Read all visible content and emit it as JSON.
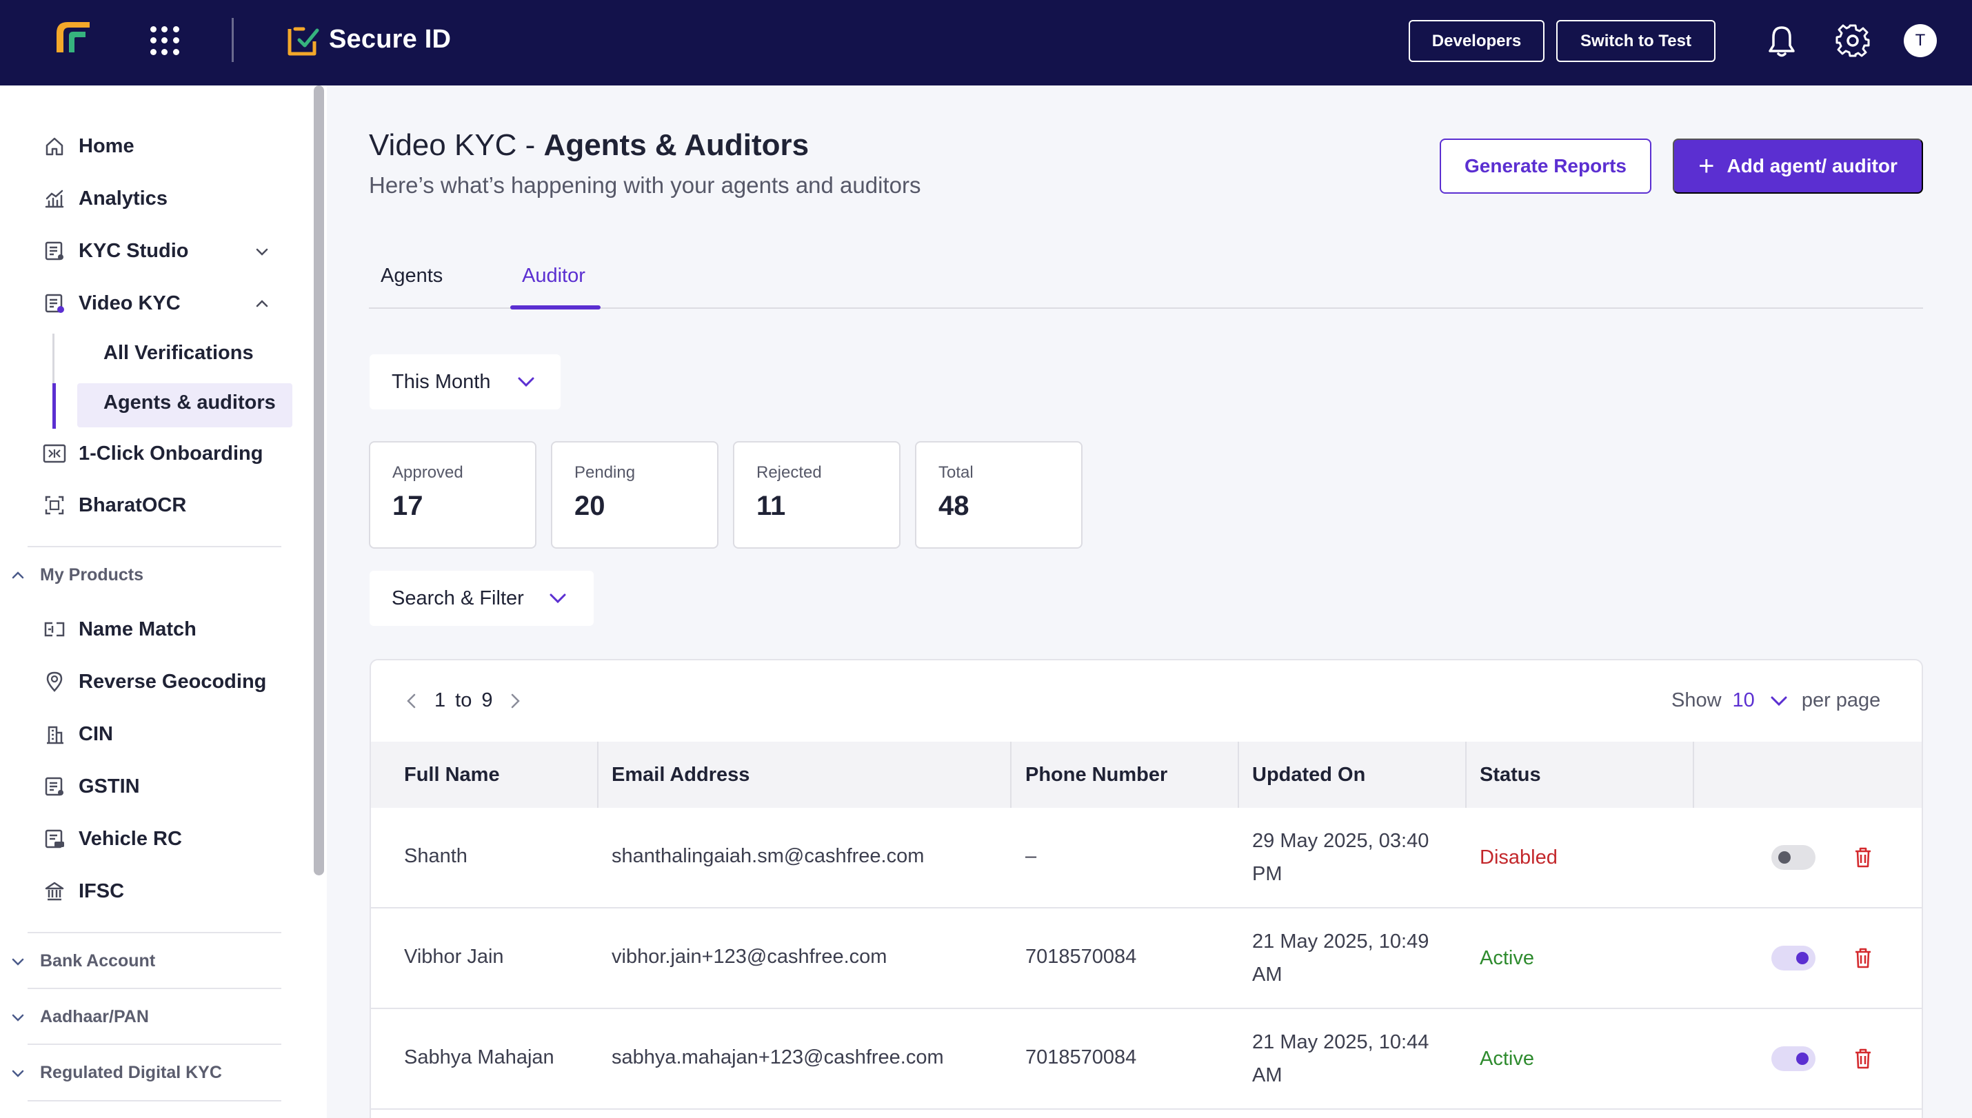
{
  "header": {
    "product_name": "Secure ID",
    "developers_label": "Developers",
    "switch_label": "Switch to Test",
    "avatar_initial": "T",
    "colors": {
      "bar": "#13124b",
      "accent": "#5b2fd1"
    }
  },
  "sidebar": {
    "items": [
      {
        "label": "Home",
        "icon": "home-icon"
      },
      {
        "label": "Analytics",
        "icon": "analytics-icon"
      },
      {
        "label": "KYC Studio",
        "icon": "kyc-studio-icon"
      },
      {
        "label": "Video KYC",
        "icon": "video-kyc-icon"
      },
      {
        "label": "1-Click Onboarding",
        "icon": "onboarding-icon"
      },
      {
        "label": "BharatOCR",
        "icon": "ocr-icon"
      }
    ],
    "video_kyc_sub": [
      "All Verifications",
      "Agents & auditors"
    ],
    "section_my_products": "My Products",
    "products": [
      {
        "label": "Name Match",
        "icon": "name-match-icon"
      },
      {
        "label": "Reverse Geocoding",
        "icon": "location-pin-icon"
      },
      {
        "label": "CIN",
        "icon": "building-icon"
      },
      {
        "label": "GSTIN",
        "icon": "document-icon"
      },
      {
        "label": "Vehicle RC",
        "icon": "vehicle-icon"
      },
      {
        "label": "IFSC",
        "icon": "bank-icon"
      }
    ],
    "collapsed_sections": [
      "Bank Account",
      "Aadhaar/PAN",
      "Regulated Digital KYC"
    ]
  },
  "main": {
    "title_prefix": "Video KYC - ",
    "title_bold": "Agents & Auditors",
    "subtitle": "Here’s what’s happening with your agents and auditors",
    "generate_label": "Generate Reports",
    "add_label": "Add agent/ auditor",
    "tabs": [
      "Agents",
      "Auditor"
    ],
    "active_tab": "Auditor",
    "period_filter": "This Month",
    "search_filter": "Search & Filter",
    "stats": [
      {
        "label": "Approved",
        "value": "17"
      },
      {
        "label": "Pending",
        "value": "20"
      },
      {
        "label": "Rejected",
        "value": "11"
      },
      {
        "label": "Total",
        "value": "48"
      }
    ],
    "pager": {
      "from": "1",
      "to_label": "to",
      "to": "9"
    },
    "show": {
      "label": "Show",
      "value": "10",
      "suffix": "per page"
    },
    "columns": [
      "Full Name",
      "Email Address",
      "Phone Number",
      "Updated On",
      "Status"
    ],
    "rows": [
      {
        "name": "Shanth",
        "email": "shanthalingaiah.sm@cashfree.com",
        "phone": "–",
        "updated_1": "29 May 2025, 03:40",
        "updated_2": "PM",
        "status": "Disabled",
        "enabled": false
      },
      {
        "name": "Vibhor Jain",
        "email": "vibhor.jain+123@cashfree.com",
        "phone": "7018570084",
        "updated_1": "21 May 2025, 10:49",
        "updated_2": "AM",
        "status": "Active",
        "enabled": true
      },
      {
        "name": "Sabhya Mahajan",
        "email": "sabhya.mahajan+123@cashfree.com",
        "phone": "7018570084",
        "updated_1": "21 May 2025, 10:44",
        "updated_2": "AM",
        "status": "Active",
        "enabled": true
      }
    ]
  }
}
